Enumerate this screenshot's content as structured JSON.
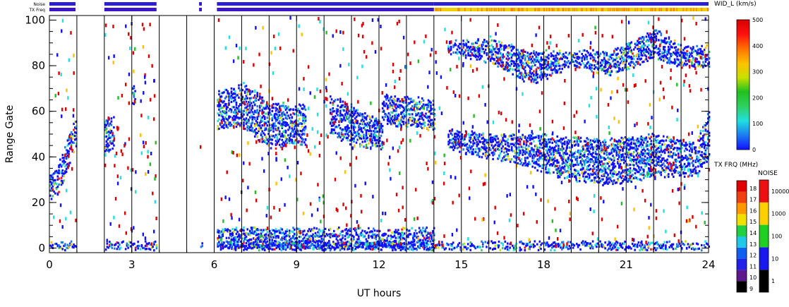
{
  "chart_data": {
    "type": "heatmap",
    "xlabel": "UT hours",
    "ylabel": "Range Gate",
    "xlim": [
      0,
      24
    ],
    "ylim": [
      -2,
      102
    ],
    "x_ticks": [
      "0",
      "3",
      "6",
      "9",
      "12",
      "15",
      "18",
      "21",
      "24"
    ],
    "y_ticks": [
      "0",
      "20",
      "40",
      "60",
      "80",
      "100"
    ],
    "scan_boundaries": [
      1,
      2,
      3,
      4,
      5,
      6,
      7,
      8,
      9,
      10,
      11,
      12,
      13,
      14,
      15,
      16,
      17,
      18,
      19,
      20,
      21,
      22,
      23
    ],
    "noise_label": "Noise",
    "txfreq_label": "TX Freq",
    "data_gaps_hours": [
      [
        0.95,
        2.0
      ],
      [
        3.9,
        5.45
      ],
      [
        5.55,
        6.1
      ]
    ],
    "noise_bar_color": "#2b1fd0",
    "txfreq_bar": {
      "segments": [
        {
          "from": 0.0,
          "to": 0.95,
          "color": "#3a16c8"
        },
        {
          "from": 2.0,
          "to": 3.9,
          "color": "#3a16c8"
        },
        {
          "from": 5.45,
          "to": 5.55,
          "color": "#3a16c8"
        },
        {
          "from": 6.1,
          "to": 14.0,
          "color": "#3a16c8"
        },
        {
          "from": 14.0,
          "to": 24.0,
          "color": "#f2d000"
        }
      ]
    },
    "colorbars": [
      {
        "title": "WID_L (km/s)",
        "min": 0,
        "max": 500,
        "ticks": [
          "0",
          "100",
          "200",
          "300",
          "400",
          "500"
        ],
        "stops": [
          "#1010ff",
          "#1c7cf0",
          "#20e0e0",
          "#30d060",
          "#20c020",
          "#c8e000",
          "#ffc000",
          "#ff7000",
          "#ff1010",
          "#d80000"
        ]
      },
      {
        "title": "TX FRQ (MHz)",
        "levels": [
          "9",
          "10",
          "11",
          "12",
          "13",
          "14",
          "15",
          "16",
          "17",
          "18"
        ],
        "colors": [
          "#000000",
          "#5c188c",
          "#2020e8",
          "#1060f0",
          "#20c8e8",
          "#20d040",
          "#f0e000",
          "#ff9800",
          "#f04010",
          "#e00000"
        ]
      },
      {
        "title": "NOISE",
        "levels": [
          "1",
          "10",
          "100",
          "1000",
          "10000"
        ],
        "colors": [
          "#000000",
          "#1818f0",
          "#20d020",
          "#ffd000",
          "#ee1010"
        ]
      }
    ],
    "echo_regions": [
      {
        "x0": 0.0,
        "x1": 0.95,
        "band": [
          [
            0,
            22,
            32
          ],
          [
            0.3,
            24,
            36
          ],
          [
            0.6,
            34,
            46
          ],
          [
            0.9,
            44,
            56
          ]
        ]
      },
      {
        "x0": 2.0,
        "x1": 2.35,
        "band": [
          [
            2.0,
            42,
            56
          ],
          [
            2.3,
            44,
            58
          ]
        ]
      },
      {
        "x0": 3.0,
        "x1": 3.1,
        "band": [
          [
            3.0,
            62,
            72
          ],
          [
            3.1,
            64,
            72
          ]
        ]
      },
      {
        "x0": 6.1,
        "x1": 9.3,
        "band": [
          [
            6.1,
            52,
            68
          ],
          [
            7.0,
            54,
            72
          ],
          [
            8.0,
            44,
            64
          ],
          [
            9.0,
            46,
            62
          ]
        ]
      },
      {
        "x0": 10.2,
        "x1": 12.1,
        "band": [
          [
            10.2,
            50,
            66
          ],
          [
            11.0,
            46,
            62
          ],
          [
            12.0,
            44,
            56
          ]
        ]
      },
      {
        "x0": 12.1,
        "x1": 14.0,
        "band": [
          [
            12.1,
            54,
            66
          ],
          [
            13.0,
            54,
            66
          ],
          [
            14.0,
            52,
            64
          ]
        ]
      },
      {
        "x0": 14.5,
        "x1": 24.0,
        "band": [
          [
            14.5,
            44,
            52
          ],
          [
            16.0,
            40,
            50
          ],
          [
            17.5,
            36,
            50
          ],
          [
            19.0,
            30,
            48
          ],
          [
            20.5,
            28,
            48
          ],
          [
            22.0,
            32,
            50
          ],
          [
            23.5,
            32,
            46
          ],
          [
            24.0,
            40,
            60
          ]
        ]
      },
      {
        "x0": 14.5,
        "x1": 24.0,
        "band": [
          [
            14.5,
            86,
            90
          ],
          [
            16.0,
            82,
            92
          ],
          [
            17.5,
            72,
            86
          ],
          [
            19.0,
            80,
            86
          ],
          [
            20.5,
            76,
            86
          ],
          [
            22.0,
            84,
            96
          ],
          [
            23.0,
            80,
            88
          ]
        ]
      },
      {
        "x0": 0.0,
        "x1": 24.0,
        "band": [
          [
            0,
            0,
            2
          ],
          [
            24,
            0,
            2
          ]
        ]
      },
      {
        "x0": 6.1,
        "x1": 14.0,
        "band": [
          [
            6.1,
            0,
            8
          ],
          [
            10,
            0,
            8
          ],
          [
            14,
            0,
            8
          ]
        ]
      }
    ]
  }
}
